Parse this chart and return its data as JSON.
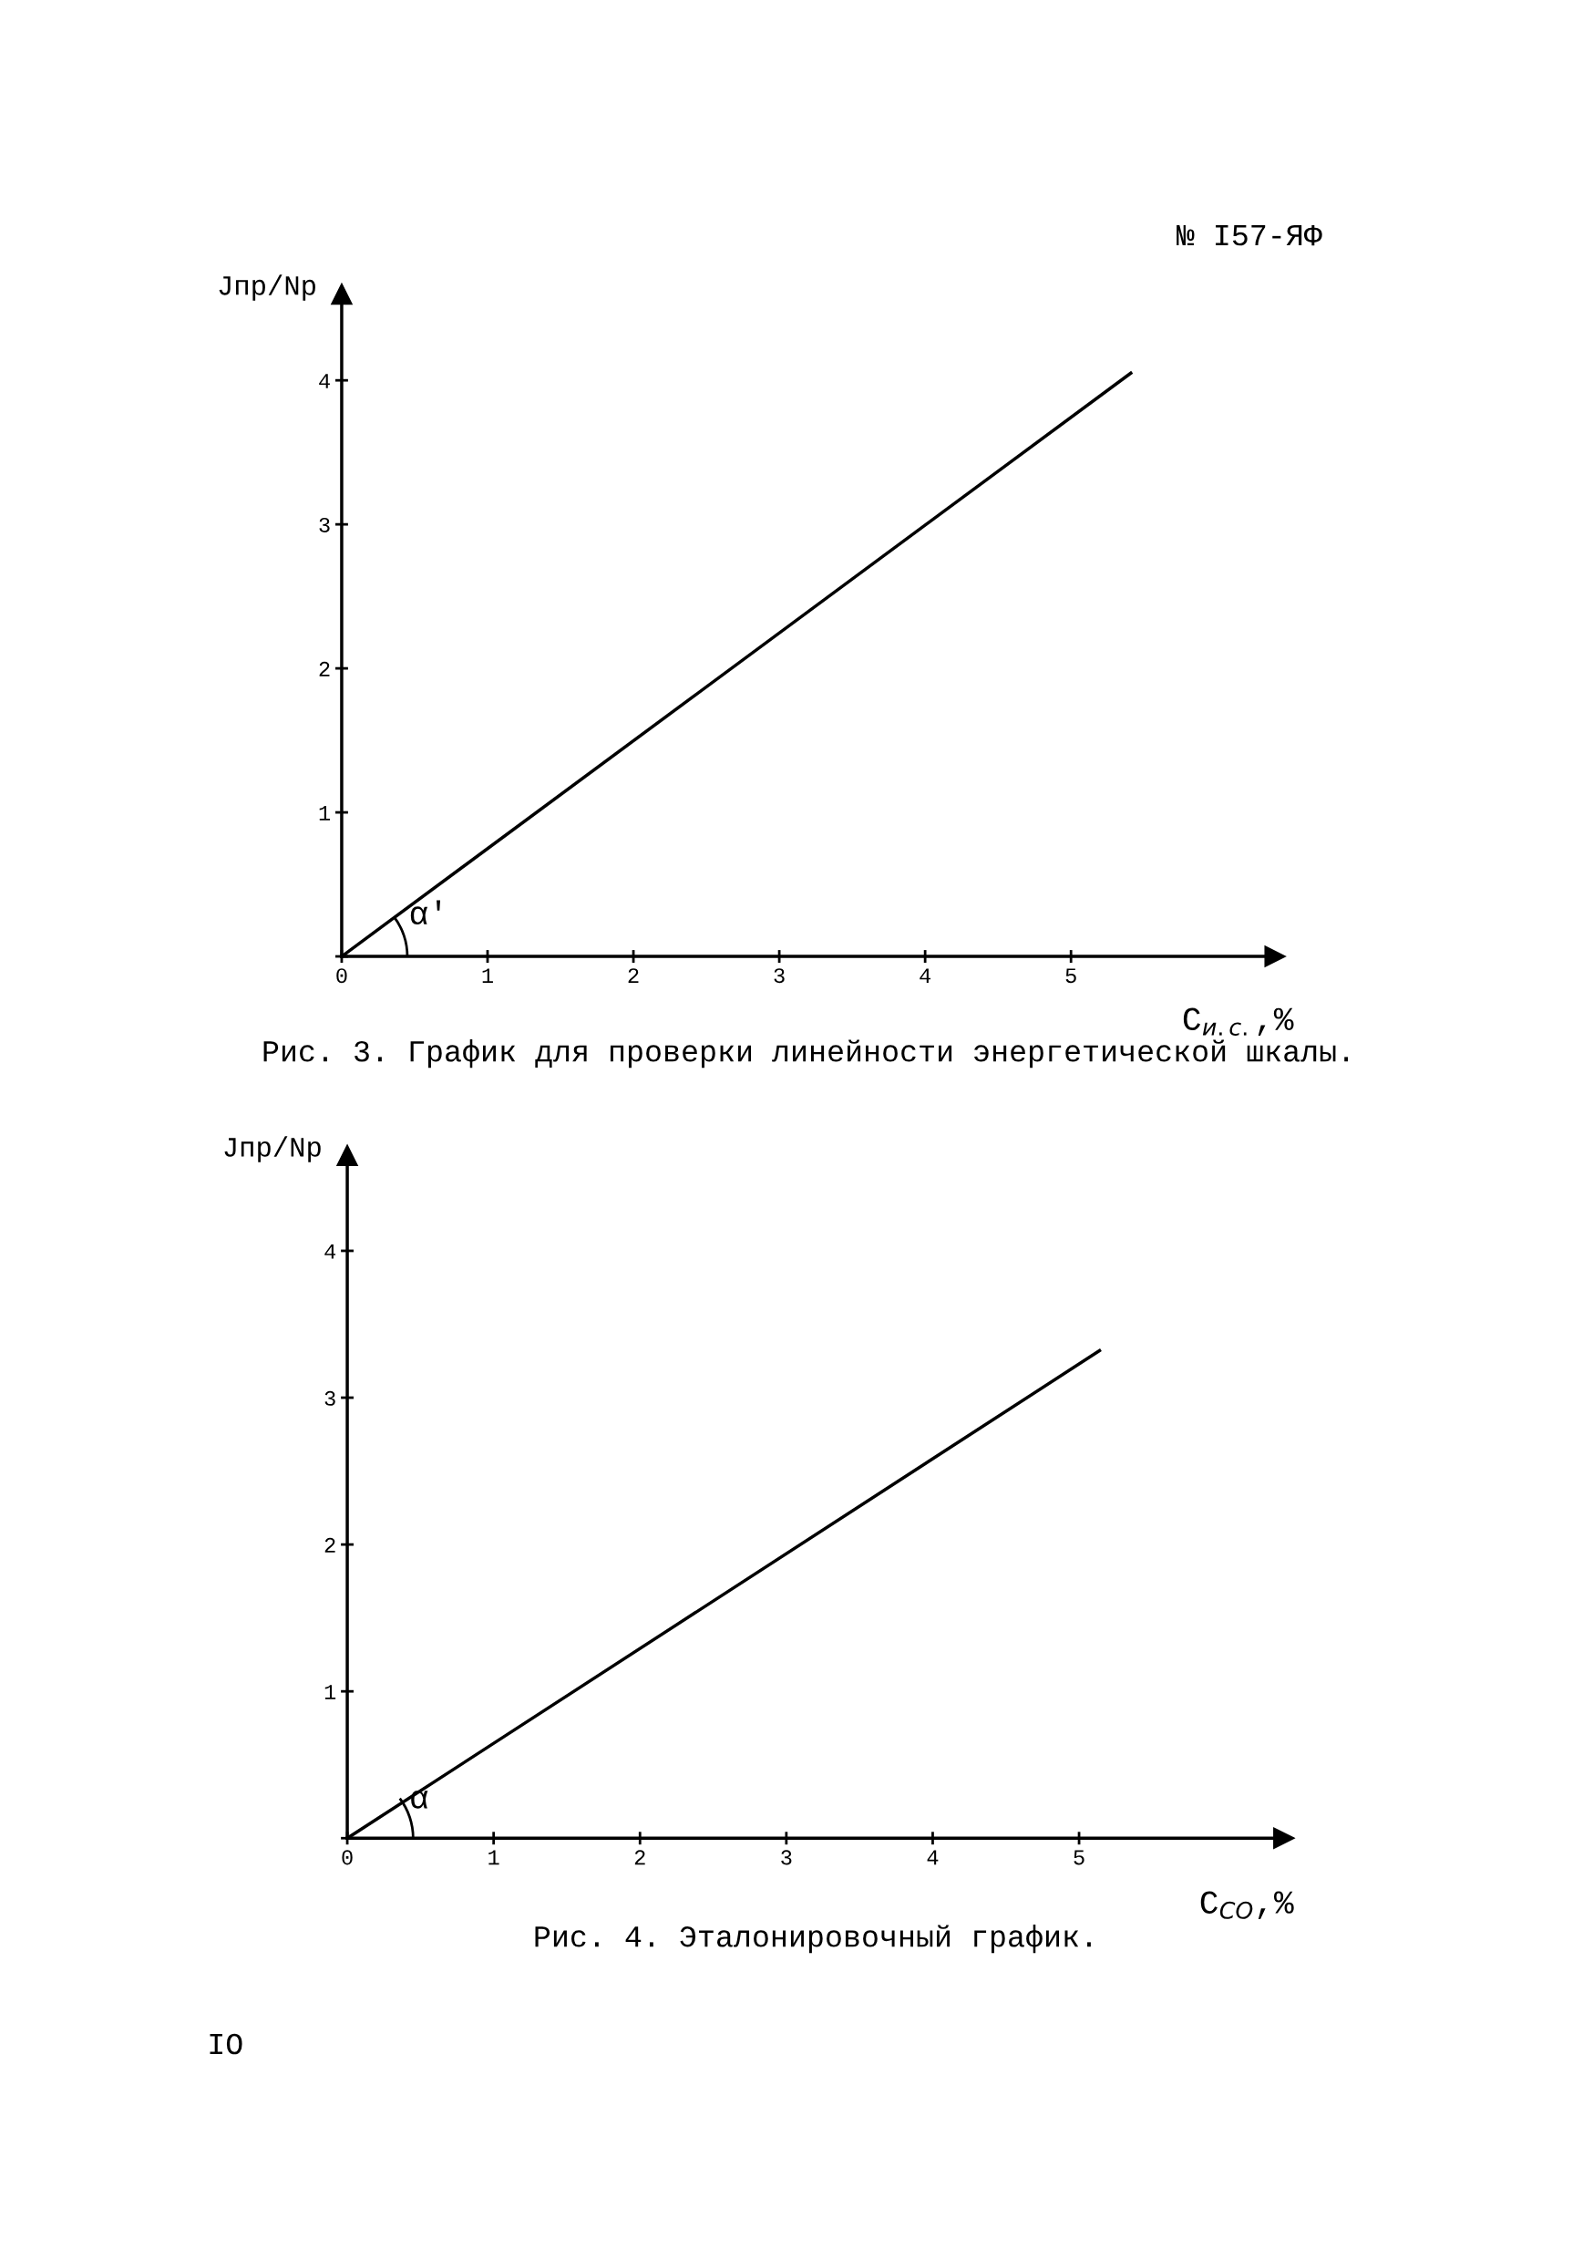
{
  "chart_data": [
    {
      "type": "line",
      "title": "Рис. 3. График для проверки линейности энергетической шкалы.",
      "xlabel": "C$_{и.с.}$,%",
      "ylabel": "Jпр/Nр",
      "x": [
        0,
        5.41
      ],
      "series": [
        {
          "color": "#000000",
          "values": [
            0,
            4.05
          ]
        }
      ],
      "xlim": [
        0,
        6.4
      ],
      "ylim": [
        0,
        4.6
      ],
      "xticks": [
        0,
        1,
        2,
        3,
        4,
        5
      ],
      "yticks": [
        {
          "value": 0,
          "label": null
        },
        1,
        2,
        3,
        4
      ],
      "annotations": [
        "№ I57-ЯФ",
        "α'"
      ],
      "grid": false,
      "line_style": "solid"
    },
    {
      "type": "line",
      "title": "Рис. 4. Эталонировочный график.",
      "xlabel": "C$_{CO}$,%",
      "ylabel": "Jпр/Nр",
      "x": [
        0,
        5.14
      ],
      "series": [
        {
          "color": "#000000",
          "values": [
            0,
            3.32
          ]
        }
      ],
      "xlim": [
        0,
        6.4
      ],
      "ylim": [
        0,
        4.65
      ],
      "xticks": [
        0,
        1,
        2,
        3,
        4,
        5
      ],
      "yticks": [
        {
          "value": 0,
          "label": null
        },
        1,
        2,
        3,
        4
      ],
      "annotations": [
        "α",
        "IO"
      ],
      "grid": false,
      "line_style": "solid"
    }
  ]
}
